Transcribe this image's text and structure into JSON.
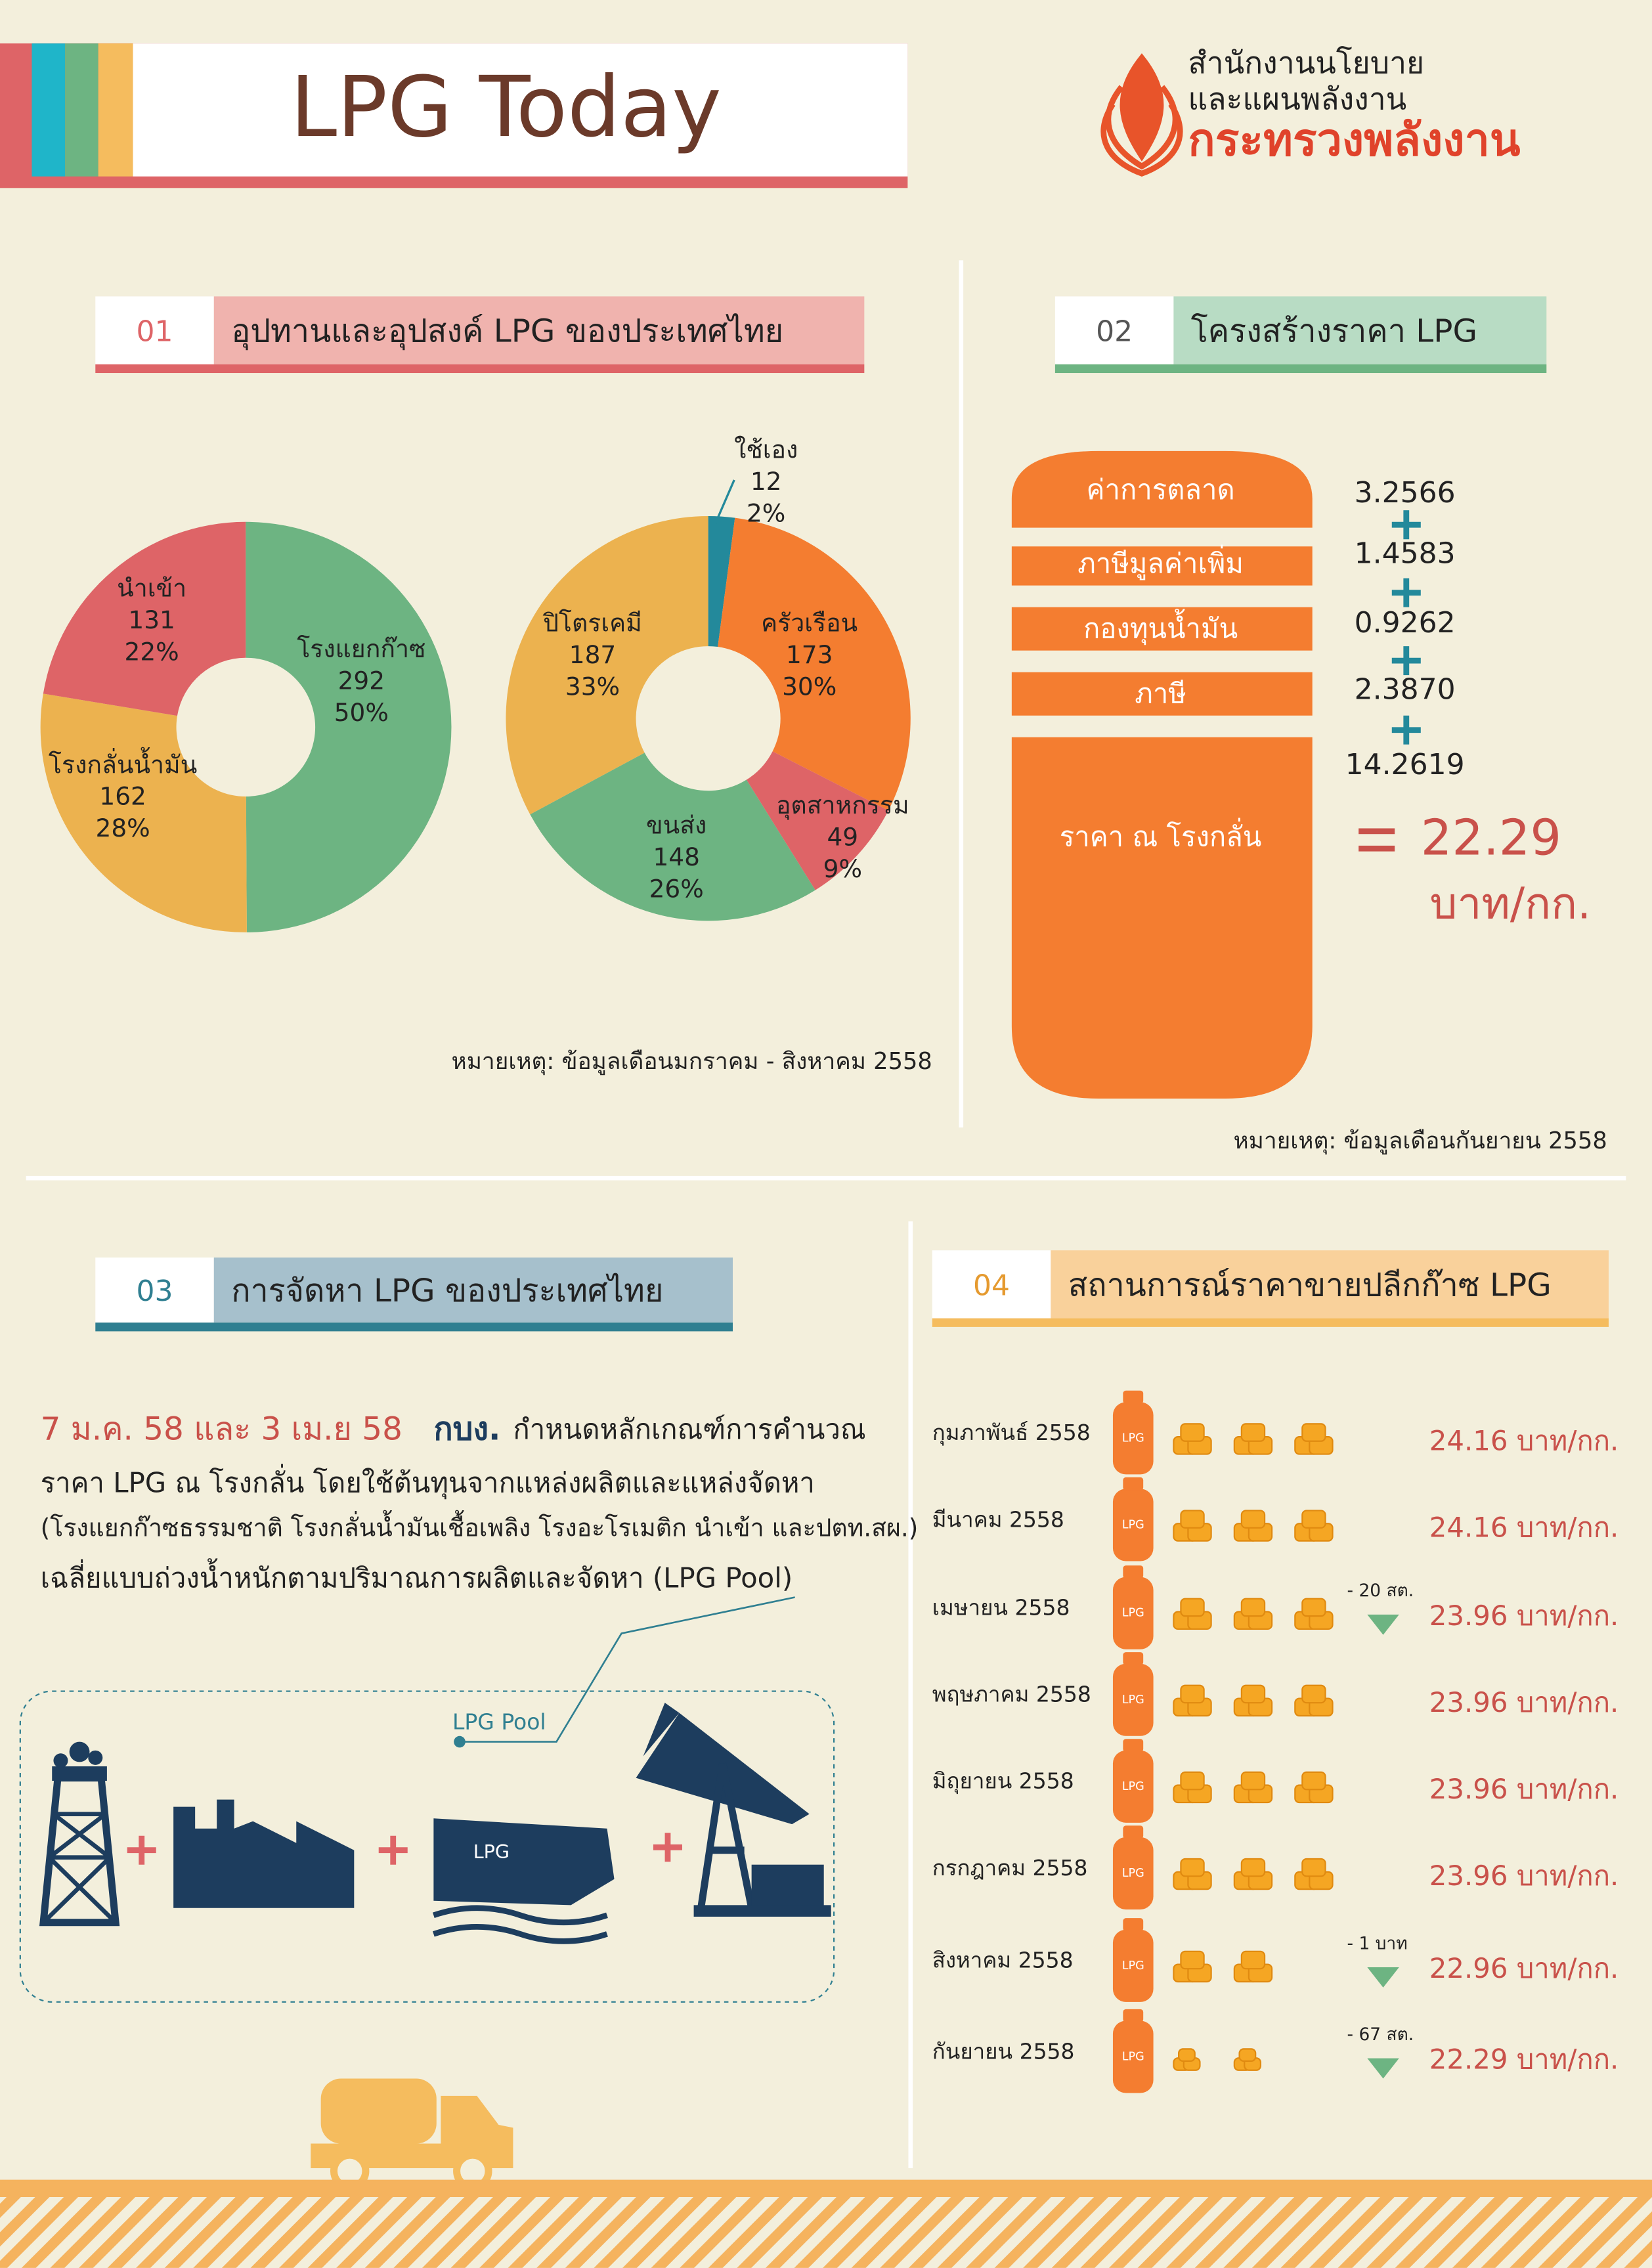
{
  "header": {
    "title": "LPG Today",
    "org_line1": "สำนักงานนโยบาย",
    "org_line2": "และแผนพลังงาน",
    "ministry": "กระทรวงพลังงาน"
  },
  "section1": {
    "number": "01",
    "title": "อุปทานและอุปสงค์ LPG ของประเทศไทย",
    "note": "หมายเหตุ: ข้อมูลเดือนมกราคม - สิงหาคม 2558"
  },
  "chart_data": [
    {
      "type": "pie",
      "categories": [
        "โรงแยกก๊าซ",
        "โรงกลั่นน้ำมัน",
        "นำเข้า"
      ],
      "values": [
        292,
        162,
        131
      ],
      "shares": [
        "50%",
        "28%",
        "22%"
      ],
      "colors": [
        "#6db482",
        "#ecb24f",
        "#de6467"
      ]
    },
    {
      "type": "pie",
      "categories": [
        "ใช้เอง",
        "ครัวเรือน",
        "อุตสาหกรรม",
        "ขนส่ง",
        "ปิโตรเคมี"
      ],
      "values": [
        12,
        173,
        49,
        148,
        187
      ],
      "shares": [
        "2%",
        "30%",
        "9%",
        "26%",
        "33%"
      ],
      "colors": [
        "#23899b",
        "#f47d30",
        "#de6467",
        "#6db482",
        "#ecb24f"
      ]
    }
  ],
  "section2": {
    "number": "02",
    "title": "โครงสร้างราคา LPG",
    "components": [
      {
        "name": "ค่าการตลาด",
        "value": "3.2566"
      },
      {
        "name": "ภาษีมูลค่าเพิ่ม",
        "value": "1.4583"
      },
      {
        "name": "กองทุนน้ำมัน",
        "value": "0.9262"
      },
      {
        "name": "ภาษี",
        "value": "2.3870"
      },
      {
        "name": "ราคา ณ โรงกลั่น",
        "value": "14.2619"
      }
    ],
    "total": "22.29",
    "unit": "บาท/กก.",
    "note": "หมายเหตุ: ข้อมูลเดือนกันยายน 2558"
  },
  "section3": {
    "number": "03",
    "title": "การจัดหา LPG ของประเทศไทย",
    "dates": "7 ม.ค. 58 และ  3 เม.ย 58",
    "agency": "กบง.",
    "line1": "กำหนดหลักเกณฑ์การคำนวณ",
    "line2": "ราคา LPG ณ โรงกลั่น โดยใช้ต้นทุนจากแหล่งผลิตและแหล่งจัดหา",
    "line3": "(โรงแยกก๊าซธรรมชาติ โรงกลั่นน้ำมันเชื้อเพลิง โรงอะโรเมติก นำเข้า และปตท.สผ.)",
    "line4": "เฉลี่ยแบบถ่วงน้ำหนักตามปริมาณการผลิตและจัดหา (LPG Pool)",
    "pool_label": "LPG Pool",
    "ship_label": "LPG"
  },
  "section4": {
    "number": "04",
    "title": "สถานการณ์ราคาขายปลีกก๊าซ LPG",
    "cylinder_label": "LPG",
    "rows": [
      {
        "month": "กุมภาพันธ์ 2558",
        "price": "24.16 บาท/กก."
      },
      {
        "month": "มีนาคม 2558",
        "price": "24.16 บาท/กก."
      },
      {
        "month": "เมษายน 2558",
        "change": "- 20 สต.",
        "price": "23.96 บาท/กก."
      },
      {
        "month": "พฤษภาคม 2558",
        "price": "23.96 บาท/กก."
      },
      {
        "month": "มิถุยายน 2558",
        "price": "23.96 บาท/กก."
      },
      {
        "month": "กรกฎาคม 2558",
        "price": "23.96 บาท/กก."
      },
      {
        "month": "สิงหาคม 2558",
        "change": "- 1 บาท",
        "price": "22.96 บาท/กก."
      },
      {
        "month": "กันยายน 2558",
        "change": "- 67 สต.",
        "price": "22.29 บาท/กก."
      }
    ]
  }
}
